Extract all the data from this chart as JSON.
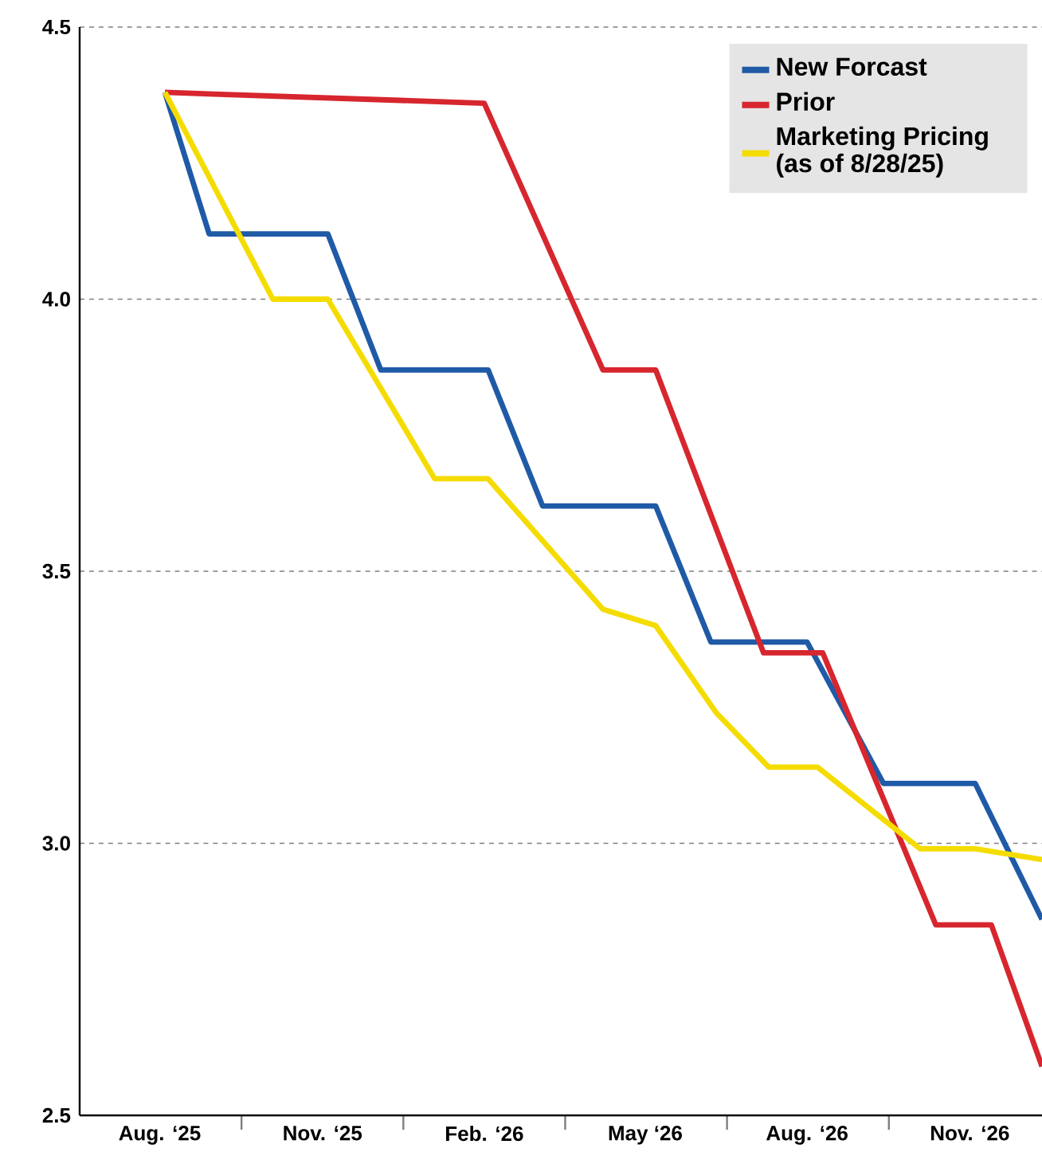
{
  "chart_data": {
    "type": "line",
    "xlim": [
      "2025-07-01",
      "2026-12-27"
    ],
    "ylim": [
      2.5,
      4.5
    ],
    "xticks": [
      {
        "value": "2025-08-16",
        "label": "Aug. ‘25"
      },
      {
        "value": "2025-10-01",
        "label": null
      },
      {
        "value": "2025-11-16",
        "label": "Nov. ‘25"
      },
      {
        "value": "2026-01-01",
        "label": null
      },
      {
        "value": "2026-02-15",
        "label": "Feb. ‘26"
      },
      {
        "value": "2026-04-01",
        "label": null
      },
      {
        "value": "2026-05-16",
        "label": "May ‘26"
      },
      {
        "value": "2026-07-01",
        "label": null
      },
      {
        "value": "2026-08-16",
        "label": "Aug. ‘26"
      },
      {
        "value": "2026-10-01",
        "label": null
      },
      {
        "value": "2026-11-16",
        "label": "Nov. ‘26"
      }
    ],
    "yticks": [
      {
        "value": 2.5,
        "label": "2.5"
      },
      {
        "value": 3.0,
        "label": "3.0"
      },
      {
        "value": 3.5,
        "label": "3.5"
      },
      {
        "value": 4.0,
        "label": "4.0"
      },
      {
        "value": 4.5,
        "label": "4.5"
      }
    ],
    "grid": "y",
    "legend": "top right",
    "marker": "none",
    "line_style": "solid",
    "series": [
      {
        "name": "New Forcast",
        "color": "#1f5aa6",
        "x": [
          "2025-08-19",
          "2025-09-13",
          "2025-11-19",
          "2025-12-19",
          "2026-02-17",
          "2026-03-19",
          "2026-05-22",
          "2026-06-22",
          "2026-08-16",
          "2026-09-28",
          "2026-11-19",
          "2026-12-27"
        ],
        "values": [
          4.38,
          4.12,
          4.12,
          3.87,
          3.87,
          3.62,
          3.62,
          3.37,
          3.37,
          3.11,
          3.11,
          2.86
        ]
      },
      {
        "name": "Prior",
        "color": "#d7262e",
        "x": [
          "2025-08-19",
          "2026-02-15",
          "2026-04-22",
          "2026-05-22",
          "2026-07-22",
          "2026-08-25",
          "2026-10-28",
          "2026-11-28",
          "2026-12-27"
        ],
        "values": [
          4.38,
          4.36,
          3.87,
          3.87,
          3.35,
          3.35,
          2.85,
          2.85,
          2.59
        ]
      },
      {
        "name": "Marketing Pricing (as of 8/28/25)",
        "color": "#f5dc00",
        "x": [
          "2025-08-19",
          "2025-10-19",
          "2025-11-19",
          "2026-01-19",
          "2026-02-17",
          "2026-04-22",
          "2026-05-22",
          "2026-06-25",
          "2026-07-25",
          "2026-08-22",
          "2026-10-19",
          "2026-11-19",
          "2026-12-27"
        ],
        "values": [
          4.38,
          4.0,
          4.0,
          3.67,
          3.67,
          3.43,
          3.4,
          3.24,
          3.14,
          3.14,
          2.99,
          2.99,
          2.97
        ]
      }
    ]
  }
}
